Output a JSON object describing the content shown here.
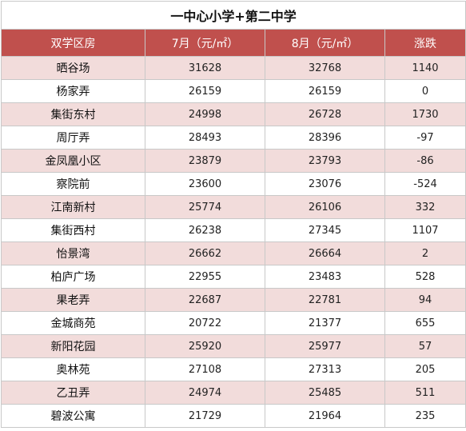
{
  "table": {
    "title": "一中心小学+第二中学",
    "headers": [
      "双学区房",
      "7月（元/㎡）",
      "8月（元/㎡）",
      "涨跌"
    ],
    "rows": [
      {
        "name": "晒谷场",
        "jul": "31628",
        "aug": "32768",
        "change": "1140"
      },
      {
        "name": "杨家弄",
        "jul": "26159",
        "aug": "26159",
        "change": "0"
      },
      {
        "name": "集街东村",
        "jul": "24998",
        "aug": "26728",
        "change": "1730"
      },
      {
        "name": "周厅弄",
        "jul": "28493",
        "aug": "28396",
        "change": "-97"
      },
      {
        "name": "金凤凰小区",
        "jul": "23879",
        "aug": "23793",
        "change": "-86"
      },
      {
        "name": "察院前",
        "jul": "23600",
        "aug": "23076",
        "change": "-524"
      },
      {
        "name": "江南新村",
        "jul": "25774",
        "aug": "26106",
        "change": "332"
      },
      {
        "name": "集街西村",
        "jul": "26238",
        "aug": "27345",
        "change": "1107"
      },
      {
        "name": "怡景湾",
        "jul": "26662",
        "aug": "26664",
        "change": "2"
      },
      {
        "name": "柏庐广场",
        "jul": "22955",
        "aug": "23483",
        "change": "528"
      },
      {
        "name": "果老弄",
        "jul": "22687",
        "aug": "22781",
        "change": "94"
      },
      {
        "name": "金城商苑",
        "jul": "20722",
        "aug": "21377",
        "change": "655"
      },
      {
        "name": "新阳花园",
        "jul": "25920",
        "aug": "25977",
        "change": "57"
      },
      {
        "name": "奥林苑",
        "jul": "27108",
        "aug": "27313",
        "change": "205"
      },
      {
        "name": "乙丑弄",
        "jul": "24974",
        "aug": "25485",
        "change": "511"
      },
      {
        "name": "碧波公寓",
        "jul": "21729",
        "aug": "21964",
        "change": "235"
      }
    ]
  },
  "colors": {
    "header_bg": "#c0504d",
    "header_text": "#ffffff",
    "stripe_bg": "#f2dcdb",
    "border": "#c8c8c8"
  }
}
